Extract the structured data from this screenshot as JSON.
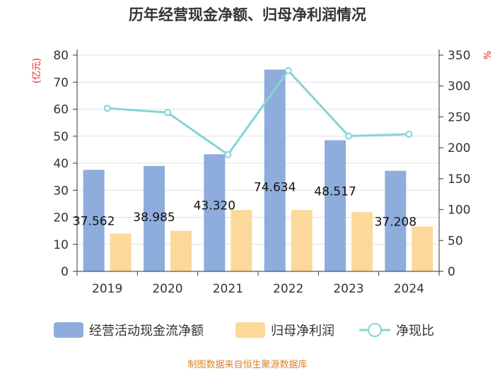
{
  "chart_data": {
    "type": "bar",
    "title": "历年经营现金净额、归母净利润情况",
    "categories": [
      "2019",
      "2020",
      "2021",
      "2022",
      "2023",
      "2024"
    ],
    "series": [
      {
        "name": "经营活动现金流净额",
        "type": "bar",
        "axis": "left",
        "values": [
          37.562,
          38.985,
          43.32,
          74.634,
          48.517,
          37.208
        ],
        "labels": [
          "37.562",
          "38.985",
          "43.320",
          "74.634",
          "48.517",
          "37.208"
        ]
      },
      {
        "name": "归母净利润",
        "type": "bar",
        "axis": "left",
        "values": [
          14.0,
          15.0,
          22.7,
          22.7,
          21.9,
          16.6
        ]
      },
      {
        "name": "净现比",
        "type": "line",
        "axis": "right",
        "values": [
          264,
          257,
          189,
          325,
          219,
          222
        ]
      }
    ],
    "y_left": {
      "label": "(亿元)",
      "min": 0,
      "max": 80,
      "ticks": [
        0,
        10,
        20,
        30,
        40,
        50,
        60,
        70,
        80
      ]
    },
    "y_right": {
      "label": "%",
      "min": 0,
      "max": 350,
      "ticks": [
        0,
        50,
        100,
        150,
        200,
        250,
        300,
        350
      ]
    },
    "legend": "bottom",
    "grid": true
  },
  "source": "制图数据来自恒生聚源数据库",
  "colors": {
    "cash_bar": "#8eaddc",
    "profit_bar": "#fcd99b",
    "ratio_line": "#86d4d6",
    "unit_red": "#e02020",
    "source_text": "#d9822b",
    "grid": "#e0e0e0",
    "axis": "#333333"
  }
}
